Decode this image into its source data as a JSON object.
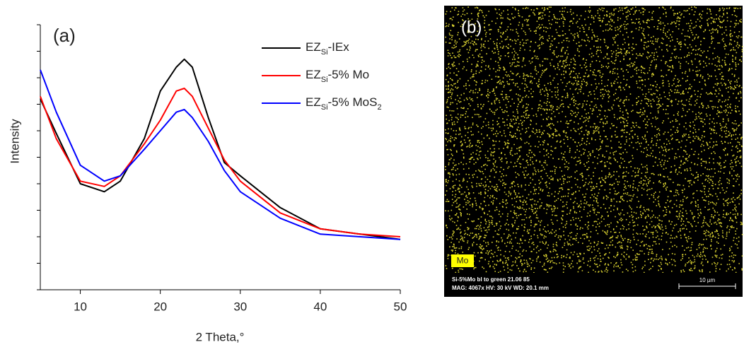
{
  "chart_data": {
    "type": "line",
    "label": "(a)",
    "x_label": "2 Theta,°",
    "y_label": "Intensity",
    "x": [
      5,
      7,
      10,
      13,
      15,
      18,
      20,
      22,
      23,
      24,
      26,
      28,
      30,
      35,
      40,
      45,
      50
    ],
    "series": [
      {
        "name": [
          "EZ",
          "Si",
          "-IEx"
        ],
        "color": "#000000",
        "values": [
          72,
          59,
          40,
          37,
          41,
          57,
          75,
          84,
          87,
          84,
          65,
          48,
          43,
          31,
          23,
          21,
          19
        ]
      },
      {
        "name": [
          "EZ",
          "Si",
          "-5% Mo"
        ],
        "color": "#ff0000",
        "values": [
          73,
          57,
          41,
          39,
          43,
          55,
          64,
          75,
          76,
          73,
          61,
          49,
          41,
          29,
          23,
          21,
          20
        ]
      },
      {
        "name": [
          "EZ",
          "Si",
          "-5% MoS",
          "2"
        ],
        "color": "#0000ff",
        "values": [
          83,
          67,
          47,
          41,
          43,
          53,
          60,
          67,
          68,
          65,
          56,
          45,
          37,
          27,
          21,
          20,
          19
        ]
      }
    ],
    "xlim": [
      5,
      50
    ],
    "xticks": [
      10,
      20,
      30,
      40,
      50
    ],
    "ylim": [
      0,
      100
    ],
    "yticks": [
      0,
      10,
      20,
      30,
      40,
      50,
      60,
      70,
      80,
      90,
      100
    ],
    "legend": "top-right"
  },
  "image": {
    "label": "(b)",
    "element": "Mo",
    "caption_1": "Si-5%Mo bl to green 21.06 85",
    "caption_2": "MAG: 4067x   HV: 30 kV   WD: 20.1 mm",
    "scale": "10 µm"
  }
}
